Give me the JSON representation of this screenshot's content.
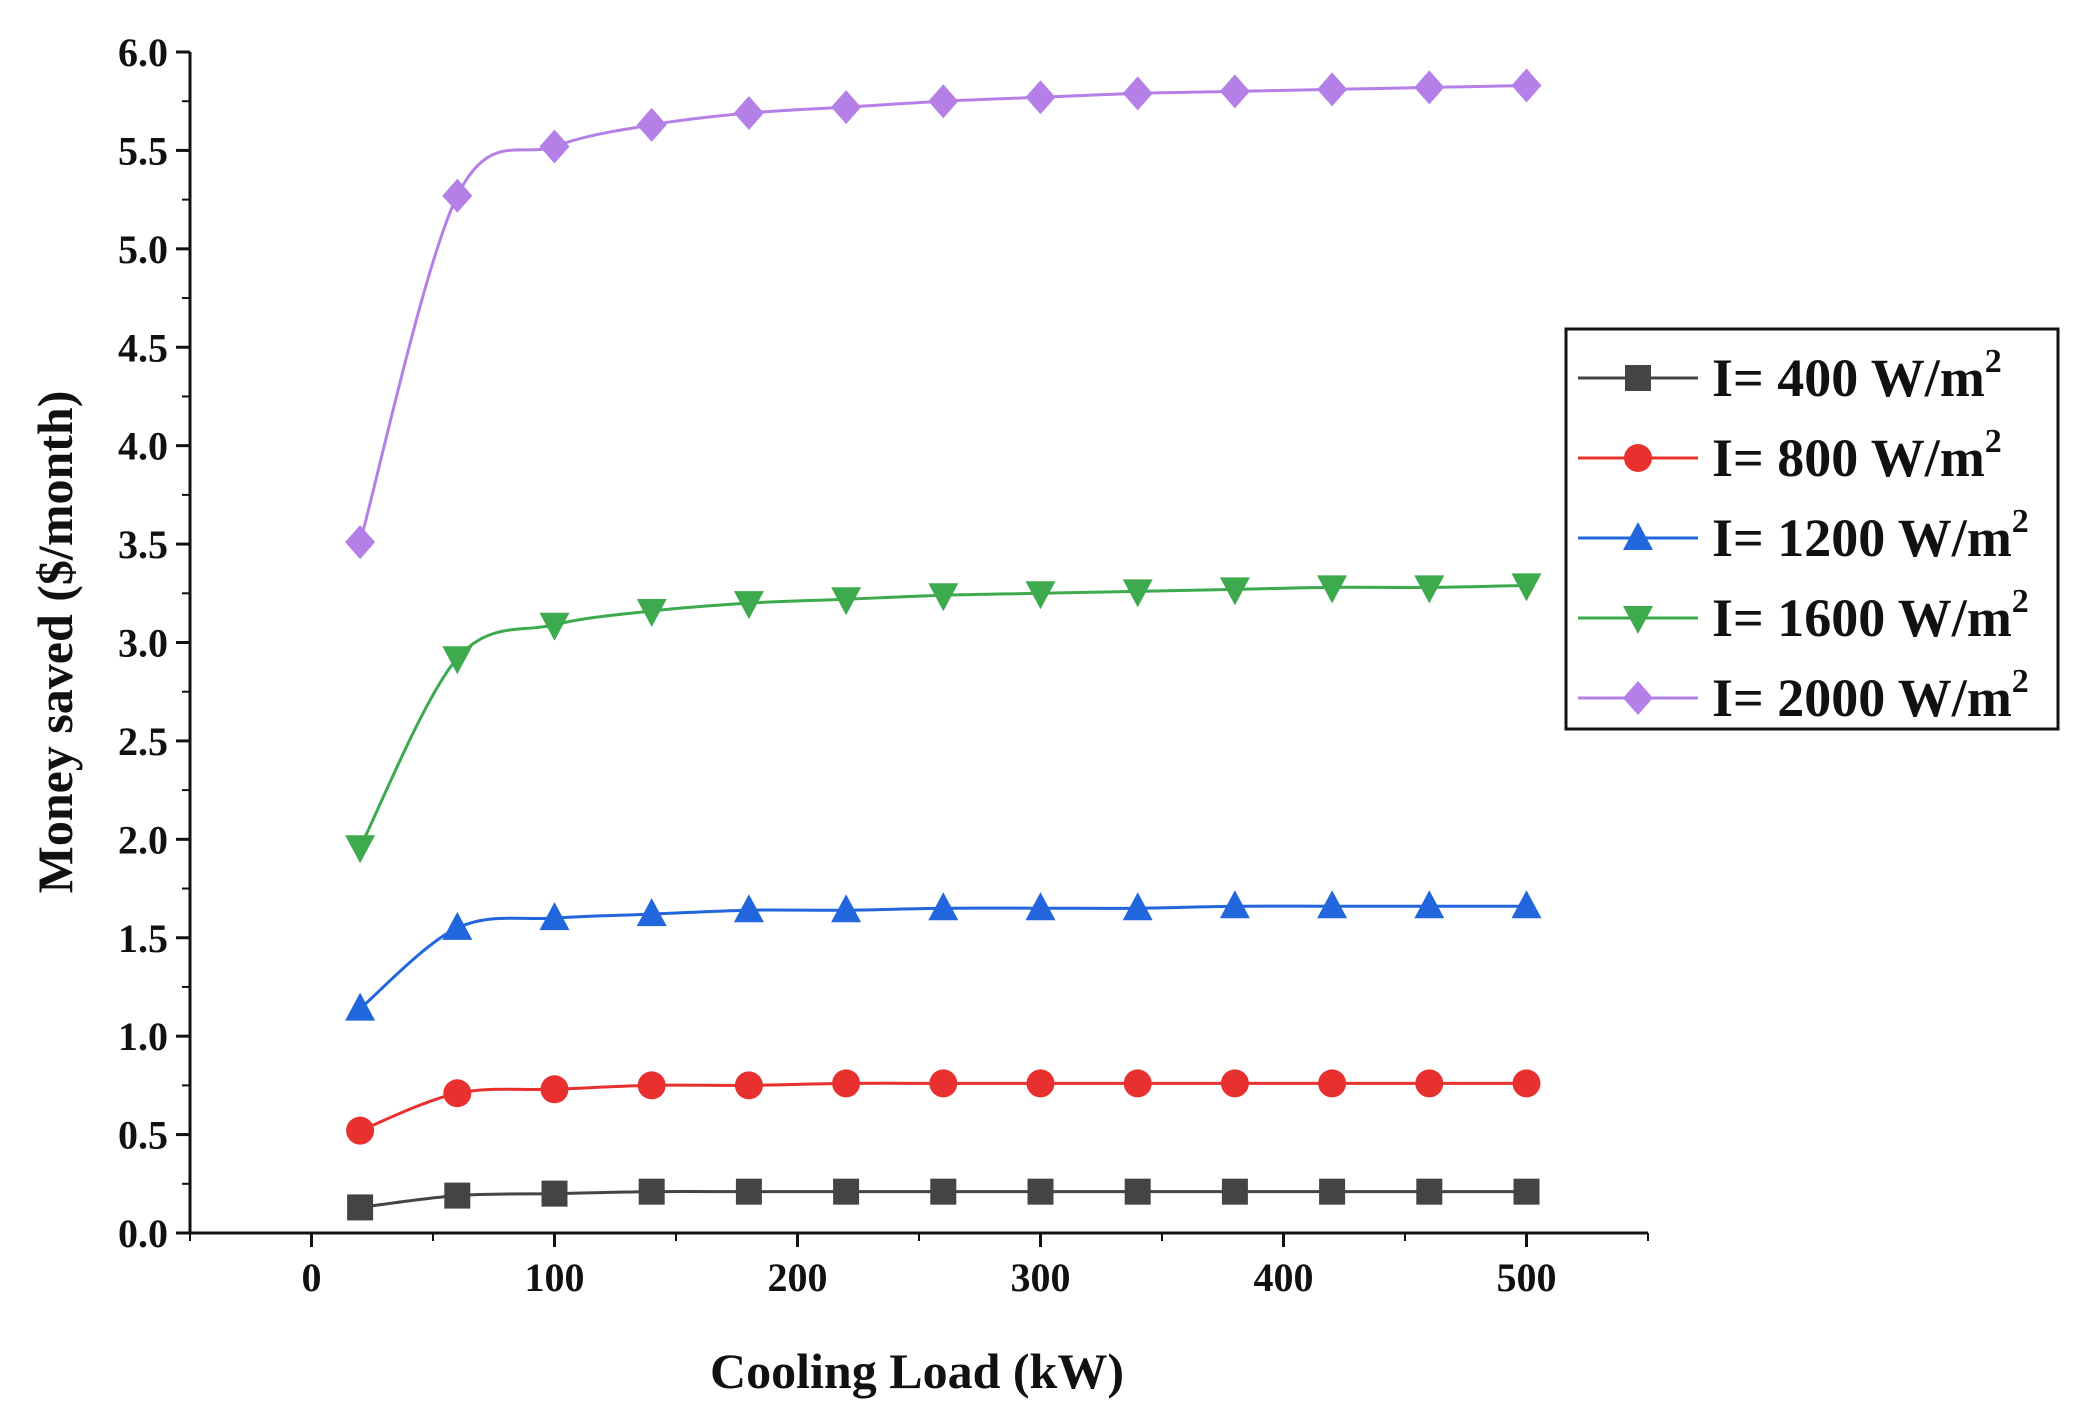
{
  "chart_data": {
    "type": "line",
    "title": "",
    "xlabel": "Cooling Load (kW)",
    "ylabel": "Money saved ($/month)",
    "xlim": [
      -50,
      550
    ],
    "ylim": [
      0,
      6.0
    ],
    "xticks": [
      0,
      100,
      200,
      300,
      400,
      500
    ],
    "xtick_labels": [
      "0",
      "100",
      "200",
      "300",
      "400",
      "500"
    ],
    "yticks": [
      0,
      0.5,
      1.0,
      1.5,
      2.0,
      2.5,
      3.0,
      3.5,
      4.0,
      4.5,
      5.0,
      5.5,
      6.0
    ],
    "ytick_labels": [
      "0.0",
      "0.5",
      "1.0",
      "1.5",
      "2.0",
      "2.5",
      "3.0",
      "3.5",
      "4.0",
      "4.5",
      "5.0",
      "5.5",
      "6.0"
    ],
    "x": [
      20,
      60,
      100,
      140,
      180,
      220,
      260,
      300,
      340,
      380,
      420,
      460,
      500
    ],
    "legend_position": "right",
    "series": [
      {
        "name": "I= 400 W/m2",
        "label_main": "I= 400 W/m",
        "label_sup": "2",
        "color": "#444444",
        "marker": "square",
        "values": [
          0.13,
          0.19,
          0.2,
          0.21,
          0.21,
          0.21,
          0.21,
          0.21,
          0.21,
          0.21,
          0.21,
          0.21,
          0.21
        ]
      },
      {
        "name": "I= 800 W/m2",
        "label_main": "I= 800 W/m",
        "label_sup": "2",
        "color": "#e8302e",
        "marker": "circle",
        "values": [
          0.52,
          0.71,
          0.73,
          0.75,
          0.75,
          0.76,
          0.76,
          0.76,
          0.76,
          0.76,
          0.76,
          0.76,
          0.76
        ]
      },
      {
        "name": "I= 1200 W/m2",
        "label_main": "I= 1200 W/m",
        "label_sup": "2",
        "color": "#2266dd",
        "marker": "triangle-up",
        "values": [
          1.14,
          1.55,
          1.6,
          1.62,
          1.64,
          1.64,
          1.65,
          1.65,
          1.65,
          1.66,
          1.66,
          1.66,
          1.66
        ]
      },
      {
        "name": "I= 1600 W/m2",
        "label_main": "I= 1600 W/m",
        "label_sup": "2",
        "color": "#3daa4d",
        "marker": "triangle-down",
        "values": [
          1.96,
          2.92,
          3.09,
          3.16,
          3.2,
          3.22,
          3.24,
          3.25,
          3.26,
          3.27,
          3.28,
          3.28,
          3.29
        ]
      },
      {
        "name": "I= 2000 W/m2",
        "label_main": "I= 2000 W/m",
        "label_sup": "2",
        "color": "#b57fe8",
        "marker": "diamond",
        "values": [
          3.51,
          5.27,
          5.52,
          5.63,
          5.69,
          5.72,
          5.75,
          5.77,
          5.79,
          5.8,
          5.81,
          5.82,
          5.83
        ]
      }
    ]
  }
}
